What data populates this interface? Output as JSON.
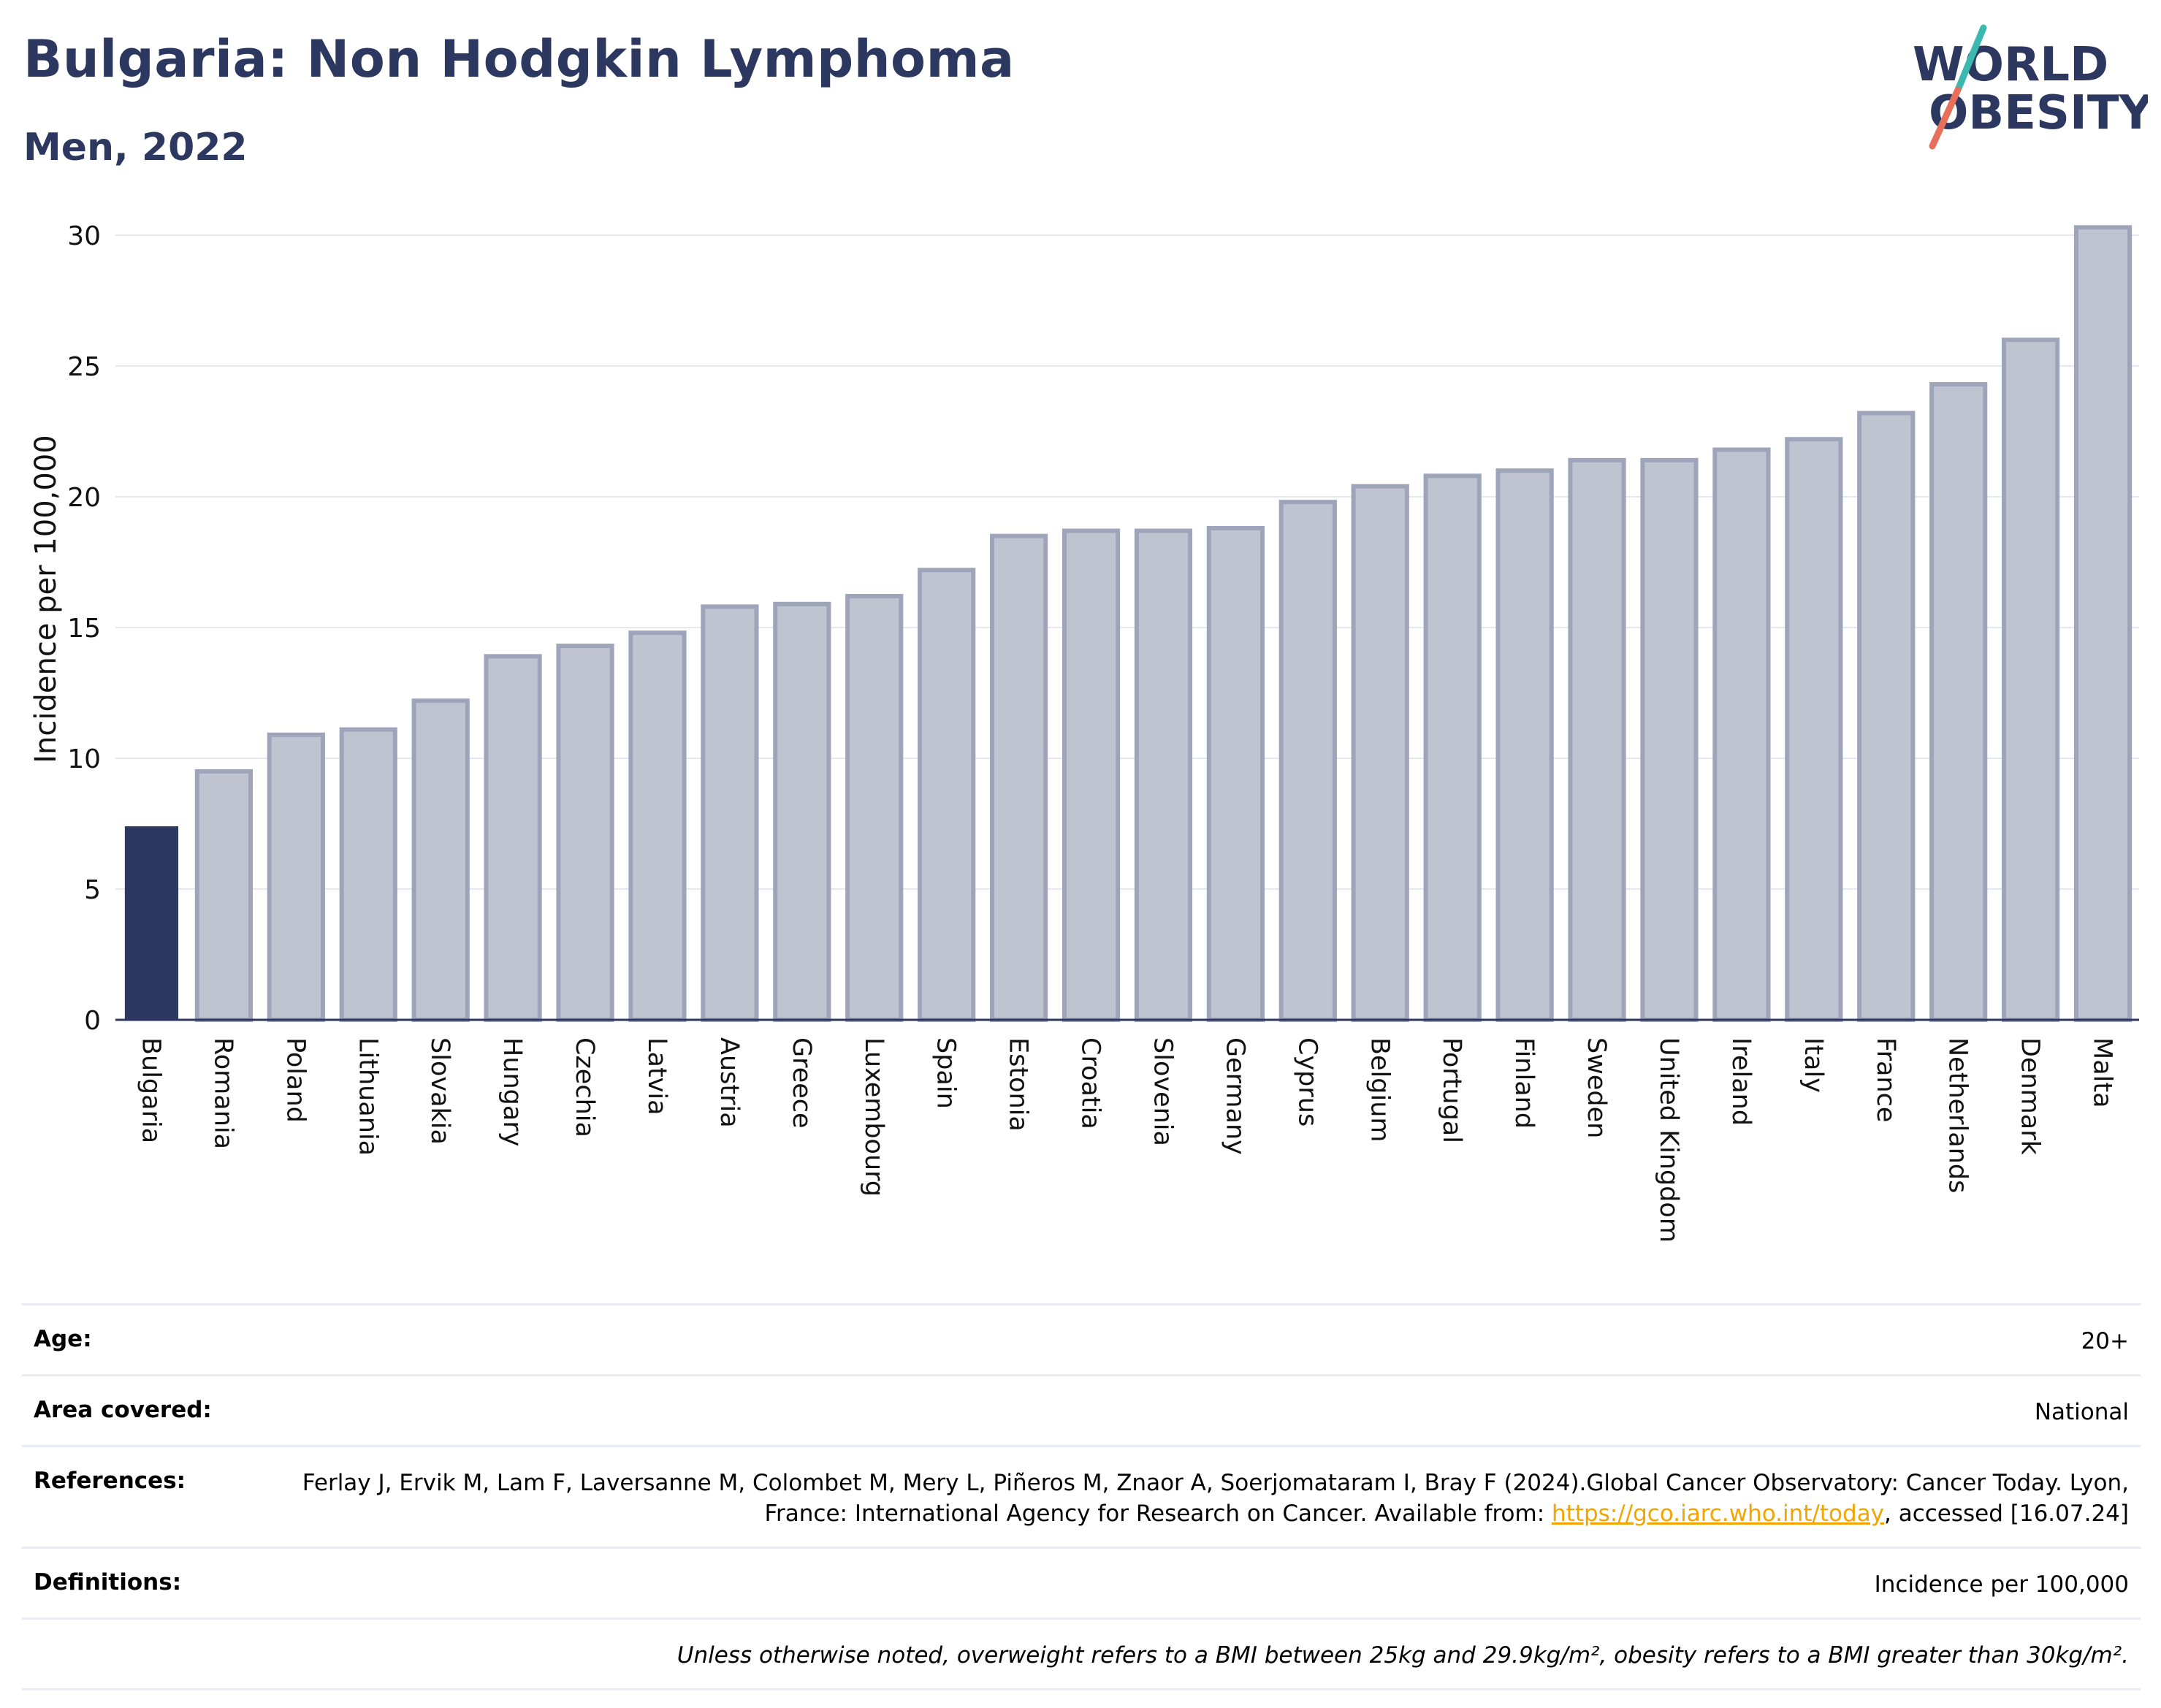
{
  "header": {
    "title": "Bulgaria: Non Hodgkin Lymphoma",
    "subtitle": "Men, 2022",
    "logo_line1": "WORLD",
    "logo_line2": "OBESITY"
  },
  "colors": {
    "title": "#2d3861",
    "highlight_bar": "#2d3861",
    "other_bar_fill": "#c0c4d1",
    "other_bar_stroke": "#9ea4b9",
    "logo_slash_teal": "#3bb8b0",
    "logo_slash_coral": "#e8705a",
    "link": "#f0a500"
  },
  "chart_data": {
    "type": "bar",
    "title": "Bulgaria: Non Hodgkin Lymphoma",
    "subtitle": "Men, 2022",
    "xlabel": "",
    "ylabel": "Incidence per 100,000",
    "ylim": [
      0,
      31
    ],
    "yticks": [
      0,
      5,
      10,
      15,
      20,
      25,
      30
    ],
    "grid": true,
    "highlight": "Bulgaria",
    "categories": [
      "Bulgaria",
      "Romania",
      "Poland",
      "Lithuania",
      "Slovakia",
      "Hungary",
      "Czechia",
      "Latvia",
      "Austria",
      "Greece",
      "Luxembourg",
      "Spain",
      "Estonia",
      "Croatia",
      "Slovenia",
      "Germany",
      "Cyprus",
      "Belgium",
      "Portugal",
      "Finland",
      "Sweden",
      "United Kingdom",
      "Ireland",
      "Italy",
      "France",
      "Netherlands",
      "Denmark",
      "Malta"
    ],
    "values": [
      7.4,
      9.5,
      10.9,
      11.1,
      12.2,
      13.9,
      14.3,
      14.8,
      15.8,
      15.9,
      16.2,
      17.2,
      18.5,
      18.7,
      18.7,
      18.8,
      19.8,
      20.4,
      20.8,
      21.0,
      21.4,
      21.4,
      21.8,
      22.2,
      23.2,
      24.3,
      26.0,
      30.3
    ]
  },
  "info": {
    "age_label": "Age:",
    "age_value": "20+",
    "area_label": "Area covered:",
    "area_value": "National",
    "references_label": "References:",
    "references_text_1": "Ferlay J, Ervik M, Lam F, Laversanne M, Colombet M, Mery L, Piñeros M, Znaor A, Soerjomataram I, Bray F (2024).Global Cancer Observatory: Cancer Today. Lyon, France: International Agency for Research on Cancer. Available from: ",
    "references_link": "https://gco.iarc.who.int/today",
    "references_text_2": ", accessed [16.07.24]",
    "definitions_label": "Definitions:",
    "definitions_value": "Incidence per 100,000",
    "note": "Unless otherwise noted, overweight refers to a BMI between 25kg and 29.9kg/m², obesity refers to a BMI greater than 30kg/m²."
  }
}
